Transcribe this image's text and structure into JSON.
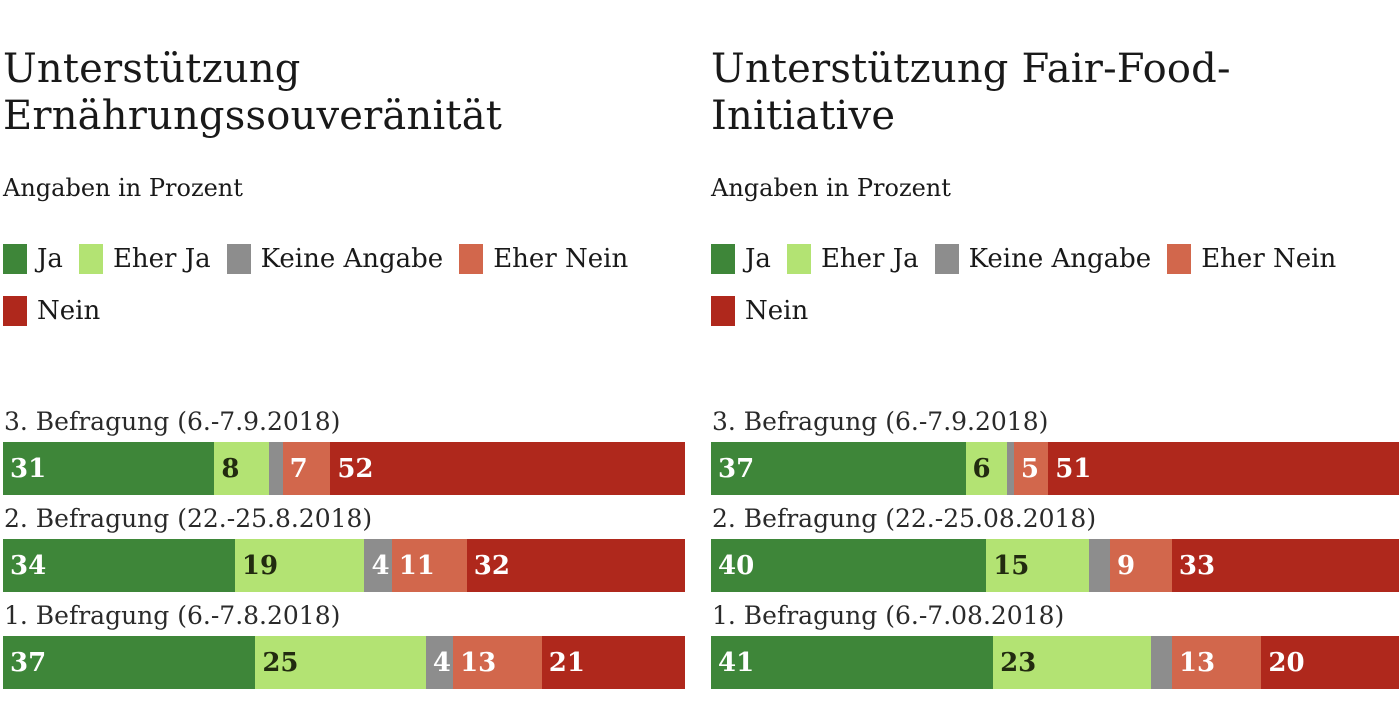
{
  "answer_options": [
    {
      "key": "ja",
      "label": "Ja",
      "color": "#3e8639",
      "value_color": "#ffffff"
    },
    {
      "key": "eher-ja",
      "label": "Eher Ja",
      "color": "#b3e373",
      "value_color": "#222b10"
    },
    {
      "key": "keine-angabe",
      "label": "Keine Angabe",
      "color": "#8d8d8d",
      "value_color": "#ffffff"
    },
    {
      "key": "eher-nein",
      "label": "Eher Nein",
      "color": "#d2674c",
      "value_color": "#ffffff"
    },
    {
      "key": "nein",
      "label": "Nein",
      "color": "#af281c",
      "value_color": "#ffffff"
    }
  ],
  "chart_data": [
    {
      "type": "bar",
      "stacked": true,
      "orientation": "horizontal",
      "title": "Unterstützung Ernährungssouveränität",
      "title_lines": [
        "Unterstützung",
        "Ernährungssouveränität"
      ],
      "subtitle": "Angaben in Prozent",
      "legend": [
        "Ja",
        "Eher Ja",
        "Keine Angabe",
        "Eher Nein",
        "Nein"
      ],
      "legend_position": "top",
      "xlim": [
        0,
        100
      ],
      "unit": "percent",
      "categories": [
        "3. Befragung (6.-7.9.2018)",
        "2. Befragung (22.-25.8.2018)",
        "1. Befragung (6.-7.8.2018)"
      ],
      "series": [
        {
          "name": "Ja",
          "values": [
            31,
            34,
            37
          ],
          "labels_shown": [
            true,
            true,
            true
          ]
        },
        {
          "name": "Eher Ja",
          "values": [
            8,
            19,
            25
          ],
          "labels_shown": [
            true,
            true,
            true
          ]
        },
        {
          "name": "Keine Angabe",
          "values": [
            2,
            4,
            4
          ],
          "labels_shown": [
            false,
            true,
            true
          ]
        },
        {
          "name": "Eher Nein",
          "values": [
            7,
            11,
            13
          ],
          "labels_shown": [
            true,
            true,
            true
          ]
        },
        {
          "name": "Nein",
          "values": [
            52,
            32,
            21
          ],
          "labels_shown": [
            true,
            true,
            true
          ]
        }
      ]
    },
    {
      "type": "bar",
      "stacked": true,
      "orientation": "horizontal",
      "title": "Unterstützung Fair-Food-Initiative",
      "title_lines": [
        "Unterstützung Fair-Food-",
        "Initiative"
      ],
      "subtitle": "Angaben in Prozent",
      "legend": [
        "Ja",
        "Eher Ja",
        "Keine Angabe",
        "Eher Nein",
        "Nein"
      ],
      "legend_position": "top",
      "xlim": [
        0,
        100
      ],
      "unit": "percent",
      "categories": [
        "3. Befragung (6.-7.9.2018)",
        "2. Befragung (22.-25.08.2018)",
        "1. Befragung (6.-7.08.2018)"
      ],
      "series": [
        {
          "name": "Ja",
          "values": [
            37,
            40,
            41
          ],
          "labels_shown": [
            true,
            true,
            true
          ]
        },
        {
          "name": "Eher Ja",
          "values": [
            6,
            15,
            23
          ],
          "labels_shown": [
            true,
            true,
            true
          ]
        },
        {
          "name": "Keine Angabe",
          "values": [
            1,
            3,
            3
          ],
          "labels_shown": [
            false,
            false,
            false
          ]
        },
        {
          "name": "Eher Nein",
          "values": [
            5,
            9,
            13
          ],
          "labels_shown": [
            true,
            true,
            true
          ]
        },
        {
          "name": "Nein",
          "values": [
            51,
            33,
            20
          ],
          "labels_shown": [
            true,
            true,
            true
          ]
        }
      ]
    }
  ]
}
